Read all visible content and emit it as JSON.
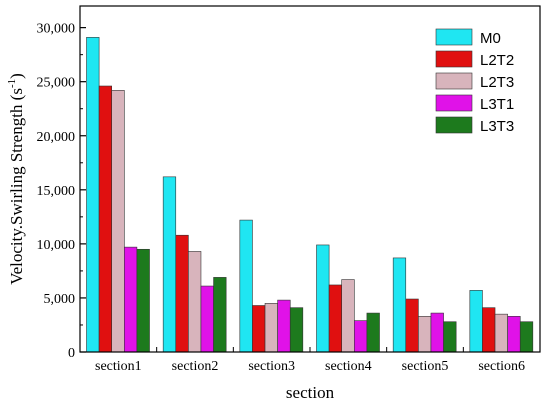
{
  "chart_data": {
    "type": "bar",
    "xlabel": "section",
    "ylabel": "Velocity.Swirling Strength (s",
    "ylabel_sup": "-1",
    "ylabel_close": ")",
    "categories": [
      "section1",
      "section2",
      "section3",
      "section4",
      "section5",
      "section6"
    ],
    "ylim": [
      0,
      32000
    ],
    "yticks": [
      0,
      5000,
      10000,
      15000,
      20000,
      25000,
      30000
    ],
    "ytick_labels": [
      "0",
      "5,000",
      "10,000",
      "15,000",
      "20,000",
      "25,000",
      "30,000"
    ],
    "grid": false,
    "legend_position": "top-right",
    "series": [
      {
        "name": "M0",
        "color": "#1fe6f2",
        "values": [
          29100,
          16200,
          12200,
          9900,
          8700,
          5700
        ]
      },
      {
        "name": "L2T2",
        "color": "#e01010",
        "values": [
          24600,
          10800,
          4300,
          6200,
          4900,
          4100
        ]
      },
      {
        "name": "L2T3",
        "color": "#d8b4bc",
        "values": [
          24200,
          9300,
          4500,
          6700,
          3300,
          3500
        ]
      },
      {
        "name": "L3T1",
        "color": "#e012e8",
        "values": [
          9700,
          6100,
          4800,
          2900,
          3600,
          3300
        ]
      },
      {
        "name": "L3T3",
        "color": "#1d7a1d",
        "values": [
          9500,
          6900,
          4100,
          3600,
          2800,
          2800
        ]
      }
    ]
  }
}
